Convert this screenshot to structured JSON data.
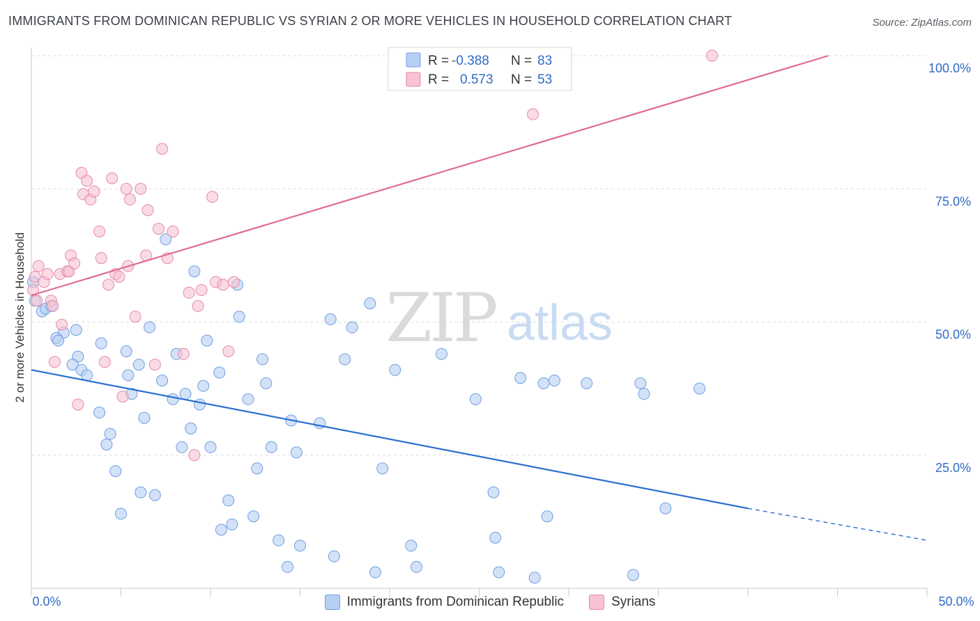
{
  "header": {
    "title": "IMMIGRANTS FROM DOMINICAN REPUBLIC VS SYRIAN 2 OR MORE VEHICLES IN HOUSEHOLD CORRELATION CHART",
    "source": "Source: ZipAtlas.com"
  },
  "watermark": {
    "zip": "ZIP",
    "atlas": "atlas"
  },
  "colors": {
    "blue_fill": "#b7cff3",
    "blue_stroke": "#6f9ee0",
    "blue_line": "#2a6fd0",
    "pink_fill": "#f7c3d3",
    "pink_stroke": "#e58aa7",
    "pink_line": "#e06b94",
    "value_text": "#2f6cc6",
    "grid": "#dddddd"
  },
  "legend_box": {
    "rows": [
      {
        "r_label": "R =",
        "r_value": "-0.388",
        "n_label": "N =",
        "n_value": "83"
      },
      {
        "r_label": "R =",
        "r_value": "0.573",
        "n_label": "N =",
        "n_value": "53"
      }
    ]
  },
  "chart_data": {
    "type": "scatter",
    "title": "IMMIGRANTS FROM DOMINICAN REPUBLIC VS SYRIAN 2 OR MORE VEHICLES IN HOUSEHOLD CORRELATION CHART",
    "xlabel": "",
    "ylabel": "2 or more Vehicles in Household",
    "xlim": [
      0,
      50
    ],
    "ylim": [
      0,
      100
    ],
    "x_tick_labels": [
      "0.0%",
      "50.0%"
    ],
    "y_tick_labels": [
      "25.0%",
      "50.0%",
      "75.0%",
      "100.0%"
    ],
    "y_ticks": [
      25,
      50,
      75,
      100
    ],
    "grid": true,
    "legend_position": "top-center",
    "series": [
      {
        "name": "Immigrants from Dominican Republic",
        "color": "#b7cff3",
        "trend": {
          "x": [
            0,
            40
          ],
          "y": [
            41,
            15
          ],
          "dashed_to": [
            50,
            9
          ]
        },
        "points": [
          [
            0.1,
            57.5
          ],
          [
            0.2,
            54
          ],
          [
            0.6,
            52
          ],
          [
            0.8,
            52.5
          ],
          [
            1.1,
            53
          ],
          [
            1.8,
            48
          ],
          [
            1.4,
            47
          ],
          [
            1.5,
            46.5
          ],
          [
            2.5,
            48.5
          ],
          [
            2.6,
            43.5
          ],
          [
            2.3,
            42
          ],
          [
            2.8,
            41
          ],
          [
            3.1,
            40
          ],
          [
            3.8,
            33
          ],
          [
            3.9,
            46
          ],
          [
            4.2,
            27
          ],
          [
            4.4,
            29
          ],
          [
            4.7,
            22
          ],
          [
            5.0,
            14
          ],
          [
            5.3,
            44.5
          ],
          [
            5.4,
            40
          ],
          [
            5.6,
            36.5
          ],
          [
            6.0,
            42
          ],
          [
            6.1,
            18
          ],
          [
            6.3,
            32
          ],
          [
            6.6,
            49
          ],
          [
            6.9,
            17.5
          ],
          [
            7.3,
            39
          ],
          [
            7.5,
            65.5
          ],
          [
            7.9,
            35.5
          ],
          [
            8.1,
            44
          ],
          [
            8.4,
            26.5
          ],
          [
            8.6,
            36.5
          ],
          [
            8.9,
            30
          ],
          [
            9.1,
            59.5
          ],
          [
            9.4,
            34.5
          ],
          [
            9.6,
            38
          ],
          [
            9.8,
            46.5
          ],
          [
            10.0,
            26.5
          ],
          [
            10.5,
            40.5
          ],
          [
            10.6,
            11
          ],
          [
            11.0,
            16.5
          ],
          [
            11.2,
            12
          ],
          [
            11.5,
            57
          ],
          [
            11.6,
            51
          ],
          [
            12.1,
            35.5
          ],
          [
            12.4,
            13.5
          ],
          [
            12.6,
            22.5
          ],
          [
            12.9,
            43
          ],
          [
            13.1,
            38.5
          ],
          [
            13.4,
            26.5
          ],
          [
            13.8,
            9
          ],
          [
            14.3,
            4
          ],
          [
            14.5,
            31.5
          ],
          [
            14.8,
            25.5
          ],
          [
            15.0,
            8
          ],
          [
            16.1,
            31
          ],
          [
            16.7,
            50.5
          ],
          [
            16.9,
            6
          ],
          [
            17.5,
            43
          ],
          [
            17.9,
            49
          ],
          [
            18.9,
            53.5
          ],
          [
            19.2,
            3
          ],
          [
            19.6,
            22.5
          ],
          [
            20.3,
            41
          ],
          [
            21.2,
            8
          ],
          [
            21.5,
            4
          ],
          [
            22.9,
            44
          ],
          [
            24.8,
            35.5
          ],
          [
            25.8,
            18
          ],
          [
            25.9,
            9.5
          ],
          [
            26.1,
            3
          ],
          [
            27.3,
            39.5
          ],
          [
            28.1,
            2
          ],
          [
            28.6,
            38.5
          ],
          [
            28.8,
            13.5
          ],
          [
            29.2,
            39
          ],
          [
            31.0,
            38.5
          ],
          [
            33.6,
            2.5
          ],
          [
            34.0,
            38.5
          ],
          [
            34.2,
            36.5
          ],
          [
            35.4,
            15
          ],
          [
            37.3,
            37.5
          ]
        ]
      },
      {
        "name": "Syrians",
        "color": "#f7c3d3",
        "trend": {
          "x": [
            0,
            44.5
          ],
          "y": [
            55,
            100
          ]
        },
        "points": [
          [
            0.1,
            56
          ],
          [
            0.2,
            58.5
          ],
          [
            0.3,
            54
          ],
          [
            0.4,
            60.5
          ],
          [
            0.7,
            57.5
          ],
          [
            0.9,
            59
          ],
          [
            1.1,
            54
          ],
          [
            1.2,
            53
          ],
          [
            1.3,
            42.5
          ],
          [
            1.6,
            59
          ],
          [
            1.7,
            49.5
          ],
          [
            2.0,
            59.5
          ],
          [
            2.1,
            59.5
          ],
          [
            2.2,
            62.5
          ],
          [
            2.4,
            61
          ],
          [
            2.6,
            34.5
          ],
          [
            2.8,
            78
          ],
          [
            2.9,
            74
          ],
          [
            3.1,
            76.5
          ],
          [
            3.3,
            73
          ],
          [
            3.5,
            74.5
          ],
          [
            3.8,
            67
          ],
          [
            3.9,
            62
          ],
          [
            4.1,
            42.5
          ],
          [
            4.3,
            57
          ],
          [
            4.5,
            77
          ],
          [
            4.7,
            59
          ],
          [
            4.9,
            58.5
          ],
          [
            5.1,
            36
          ],
          [
            5.3,
            75
          ],
          [
            5.4,
            60.5
          ],
          [
            5.5,
            73
          ],
          [
            5.8,
            51
          ],
          [
            6.1,
            75
          ],
          [
            6.4,
            62.5
          ],
          [
            6.5,
            71
          ],
          [
            6.9,
            42
          ],
          [
            7.1,
            67.5
          ],
          [
            7.3,
            82.5
          ],
          [
            7.6,
            62
          ],
          [
            7.9,
            67
          ],
          [
            8.5,
            44
          ],
          [
            8.8,
            55.5
          ],
          [
            9.1,
            25
          ],
          [
            9.3,
            53
          ],
          [
            9.5,
            56
          ],
          [
            10.1,
            73.5
          ],
          [
            10.3,
            57.5
          ],
          [
            10.7,
            57
          ],
          [
            11.0,
            44.5
          ],
          [
            11.3,
            57.5
          ],
          [
            28.0,
            89
          ],
          [
            38.0,
            100
          ]
        ]
      }
    ]
  },
  "axes": {
    "y_title": "2 or more Vehicles in Household",
    "x_left": "0.0%",
    "x_right": "50.0%"
  },
  "bottom_legend": {
    "blue_label": "Immigrants from Dominican Republic",
    "pink_label": "Syrians"
  }
}
